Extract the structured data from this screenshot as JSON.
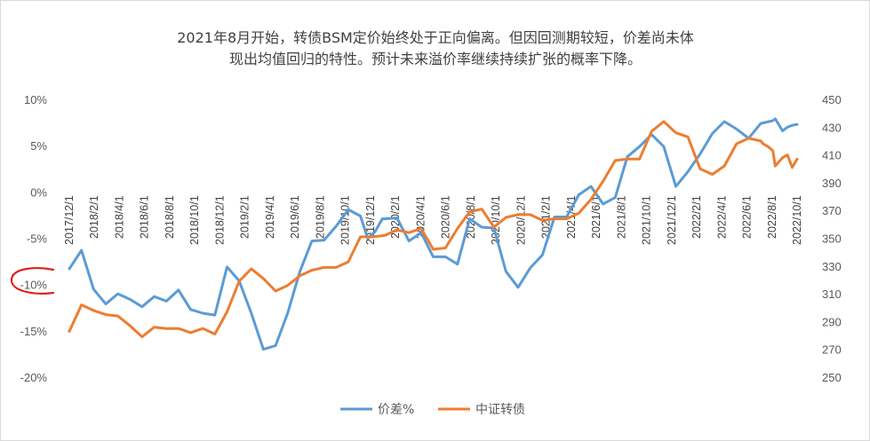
{
  "chart_data": {
    "type": "line",
    "title": "2021年8月开始，转债BSM定价始终处于正向偏离。但因回测期较短，价差尚未体现出均值回归的特性。预计未来溢价率继续持续扩张的概率下降。",
    "title_lines": [
      "2021年8月开始，转债BSM定价始终处于正向偏离。但因回测期较短，价差尚未体",
      "现出均值回归的特性。预计未来溢价率继续持续扩张的概率下降。"
    ],
    "x_tick_labels": [
      "2017/12/1",
      "2018/2/1",
      "2018/4/1",
      "2018/6/1",
      "2018/8/1",
      "2018/10/1",
      "2018/12/1",
      "2019/2/1",
      "2019/4/1",
      "2019/6/1",
      "2019/8/1",
      "2019/10/1",
      "2019/12/1",
      "2020/2/1",
      "2020/4/1",
      "2020/6/1",
      "2020/8/1",
      "2020/10/1",
      "2020/12/1",
      "2021/2/1",
      "2021/4/1",
      "2021/6/1",
      "2021/8/1",
      "2021/10/1",
      "2021/12/1",
      "2022/2/1",
      "2022/4/1",
      "2022/6/1",
      "2022/8/1",
      "2022/10/1"
    ],
    "y_left": {
      "ticks": [
        "10%",
        "5%",
        "0%",
        "-5%",
        "-10%",
        "-15%",
        "-20%"
      ],
      "min": -20,
      "max": 10
    },
    "y_right": {
      "ticks": [
        "450",
        "430",
        "410",
        "390",
        "370",
        "350",
        "330",
        "310",
        "290",
        "270",
        "250"
      ],
      "min": 250,
      "max": 450
    },
    "grid": false,
    "legend_placement": "bottom",
    "series": [
      {
        "name": "价差%",
        "axis": "left",
        "color": "#5b9bd5",
        "x": [
          0,
          0.5,
          1,
          1.5,
          2,
          2.5,
          3,
          3.5,
          4,
          4.5,
          5,
          5.5,
          6,
          6.5,
          7,
          7.5,
          8,
          8.5,
          9,
          9.5,
          10,
          10.5,
          11,
          11.5,
          12,
          12.3,
          12.6,
          12.9,
          13,
          13.5,
          14,
          14.5,
          15,
          15.5,
          16,
          16.5,
          17,
          17.5,
          18,
          18.5,
          19,
          19.5,
          20,
          20.5,
          21,
          21.5,
          22,
          22.5,
          23,
          23.5,
          24,
          24.5,
          25,
          25.5,
          26,
          26.5,
          27,
          27.5,
          28,
          28.5,
          29,
          29.1,
          29.4,
          29.6,
          29.8,
          30
        ],
        "values": [
          -8.3,
          -6.3,
          -10.5,
          -12.1,
          -11.0,
          -11.6,
          -12.4,
          -11.3,
          -11.8,
          -10.6,
          -12.7,
          -13.1,
          -13.3,
          -8.1,
          -9.6,
          -13.1,
          -17.0,
          -16.6,
          -13.1,
          -8.6,
          -5.3,
          -5.2,
          -3.7,
          -1.9,
          -2.6,
          -5.0,
          -4.3,
          -2.9,
          -2.9,
          -2.8,
          -5.3,
          -4.4,
          -7.0,
          -7.0,
          -7.8,
          -2.9,
          -3.8,
          -3.9,
          -8.6,
          -10.3,
          -8.2,
          -6.8,
          -2.7,
          -2.7,
          -0.3,
          0.6,
          -1.3,
          -0.6,
          3.8,
          4.9,
          6.2,
          4.9,
          0.6,
          2.2,
          4.1,
          6.3,
          7.6,
          6.8,
          5.8,
          7.4,
          7.7,
          7.9,
          6.6,
          7.0,
          7.2,
          7.3
        ]
      },
      {
        "name": "中证转债",
        "axis": "right",
        "color": "#ed7d31",
        "x": [
          0,
          0.5,
          1,
          1.5,
          2,
          2.5,
          3,
          3.5,
          4,
          4.5,
          5,
          5.5,
          6,
          6.5,
          7,
          7.5,
          8,
          8.5,
          9,
          9.5,
          10,
          10.5,
          11,
          11.5,
          12,
          12.5,
          13,
          13.5,
          14,
          14.5,
          15,
          15.5,
          16,
          16.5,
          17,
          17.5,
          18,
          18.5,
          19,
          19.5,
          20,
          20.5,
          21,
          21.5,
          22,
          22.5,
          23,
          23.5,
          24,
          24.5,
          25,
          25.5,
          26,
          26.5,
          27,
          27.5,
          28,
          28.5,
          28.6,
          28.8,
          29,
          29.1,
          29.4,
          29.6,
          29.8,
          30
        ],
        "values": [
          283,
          302,
          298,
          295,
          294,
          287,
          279,
          286,
          285,
          285,
          282,
          285,
          281,
          297,
          319,
          328,
          321,
          312,
          316,
          323,
          327,
          329,
          329,
          333,
          351,
          351,
          352,
          356,
          354,
          357,
          342,
          343,
          357,
          369,
          371,
          358,
          365,
          367,
          367,
          363,
          364,
          364,
          368,
          378,
          391,
          406,
          407,
          407,
          427,
          434,
          426,
          423,
          400,
          396,
          402,
          418,
          422,
          420,
          418,
          416,
          413,
          402,
          408,
          410,
          401,
          407
        ]
      }
    ]
  }
}
